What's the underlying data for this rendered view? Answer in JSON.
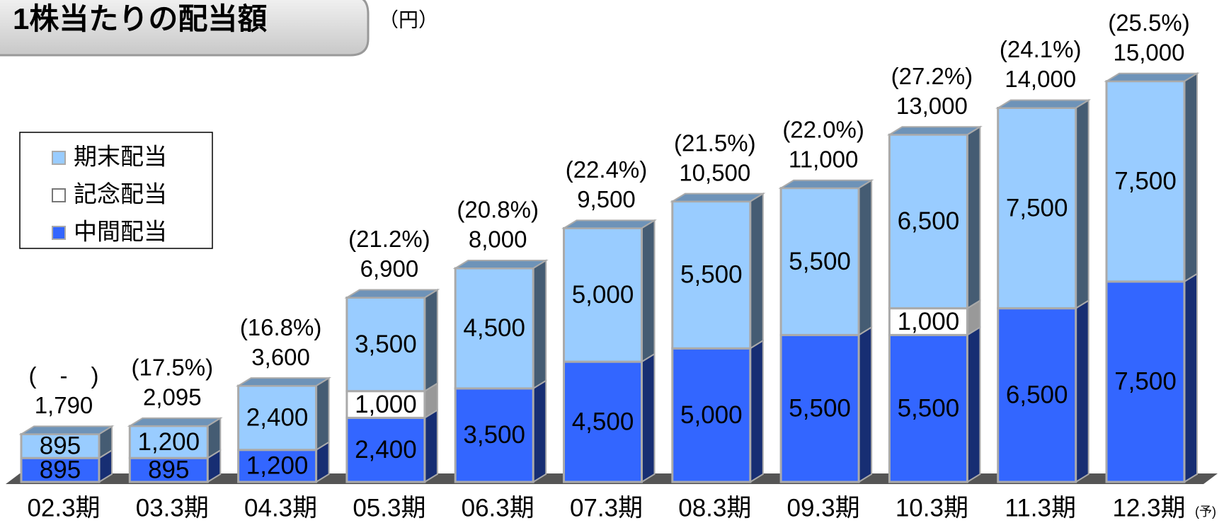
{
  "chart_data": {
    "type": "stacked-bar-3d",
    "title": "1株当たりの配当額",
    "unit_label": "（円）",
    "categories": [
      "02.3期",
      "03.3期",
      "04.3期",
      "05.3期",
      "06.3期",
      "07.3期",
      "08.3期",
      "09.3期",
      "10.3期",
      "11.3期",
      "12.3期"
    ],
    "category_note": "(予)",
    "series": [
      {
        "name": "中間配当",
        "color": "#3366ff",
        "values": [
          895,
          895,
          1200,
          2400,
          3500,
          4500,
          5000,
          5500,
          5500,
          6500,
          7500
        ],
        "value_labels": [
          "895",
          "895",
          "1,200",
          "2,400",
          "3,500",
          "4,500",
          "5,000",
          "5,500",
          "5,500",
          "6,500",
          "7,500"
        ]
      },
      {
        "name": "記念配当",
        "color": "#ffffff",
        "values": [
          null,
          null,
          null,
          1000,
          null,
          null,
          null,
          null,
          1000,
          null,
          null
        ],
        "value_labels": [
          null,
          null,
          null,
          "1,000",
          null,
          null,
          null,
          null,
          "1,000",
          null,
          null
        ]
      },
      {
        "name": "期末配当",
        "color": "#99ccff",
        "values": [
          895,
          1200,
          2400,
          3500,
          4500,
          5000,
          5500,
          5500,
          6500,
          7500,
          7500
        ],
        "value_labels": [
          "895",
          "1,200",
          "2,400",
          "3,500",
          "4,500",
          "5,000",
          "5,500",
          "5,500",
          "6,500",
          "7,500",
          "7,500"
        ]
      }
    ],
    "totals": {
      "values": [
        1790,
        2095,
        3600,
        6900,
        8000,
        9500,
        10500,
        11000,
        13000,
        14000,
        15000
      ],
      "value_labels": [
        "1,790",
        "2,095",
        "3,600",
        "6,900",
        "8,000",
        "9,500",
        "10,500",
        "11,000",
        "13,000",
        "14,000",
        "15,000"
      ]
    },
    "payout_labels": [
      "(　-　)",
      "(17.5%)",
      "(16.8%)",
      "(21.2%)",
      "(20.8%)",
      "(22.4%)",
      "(21.5%)",
      "(22.0%)",
      "(27.2%)",
      "(24.1%)",
      "(25.5%)"
    ],
    "ylim": [
      0,
      16000
    ],
    "legend": "upper left"
  }
}
